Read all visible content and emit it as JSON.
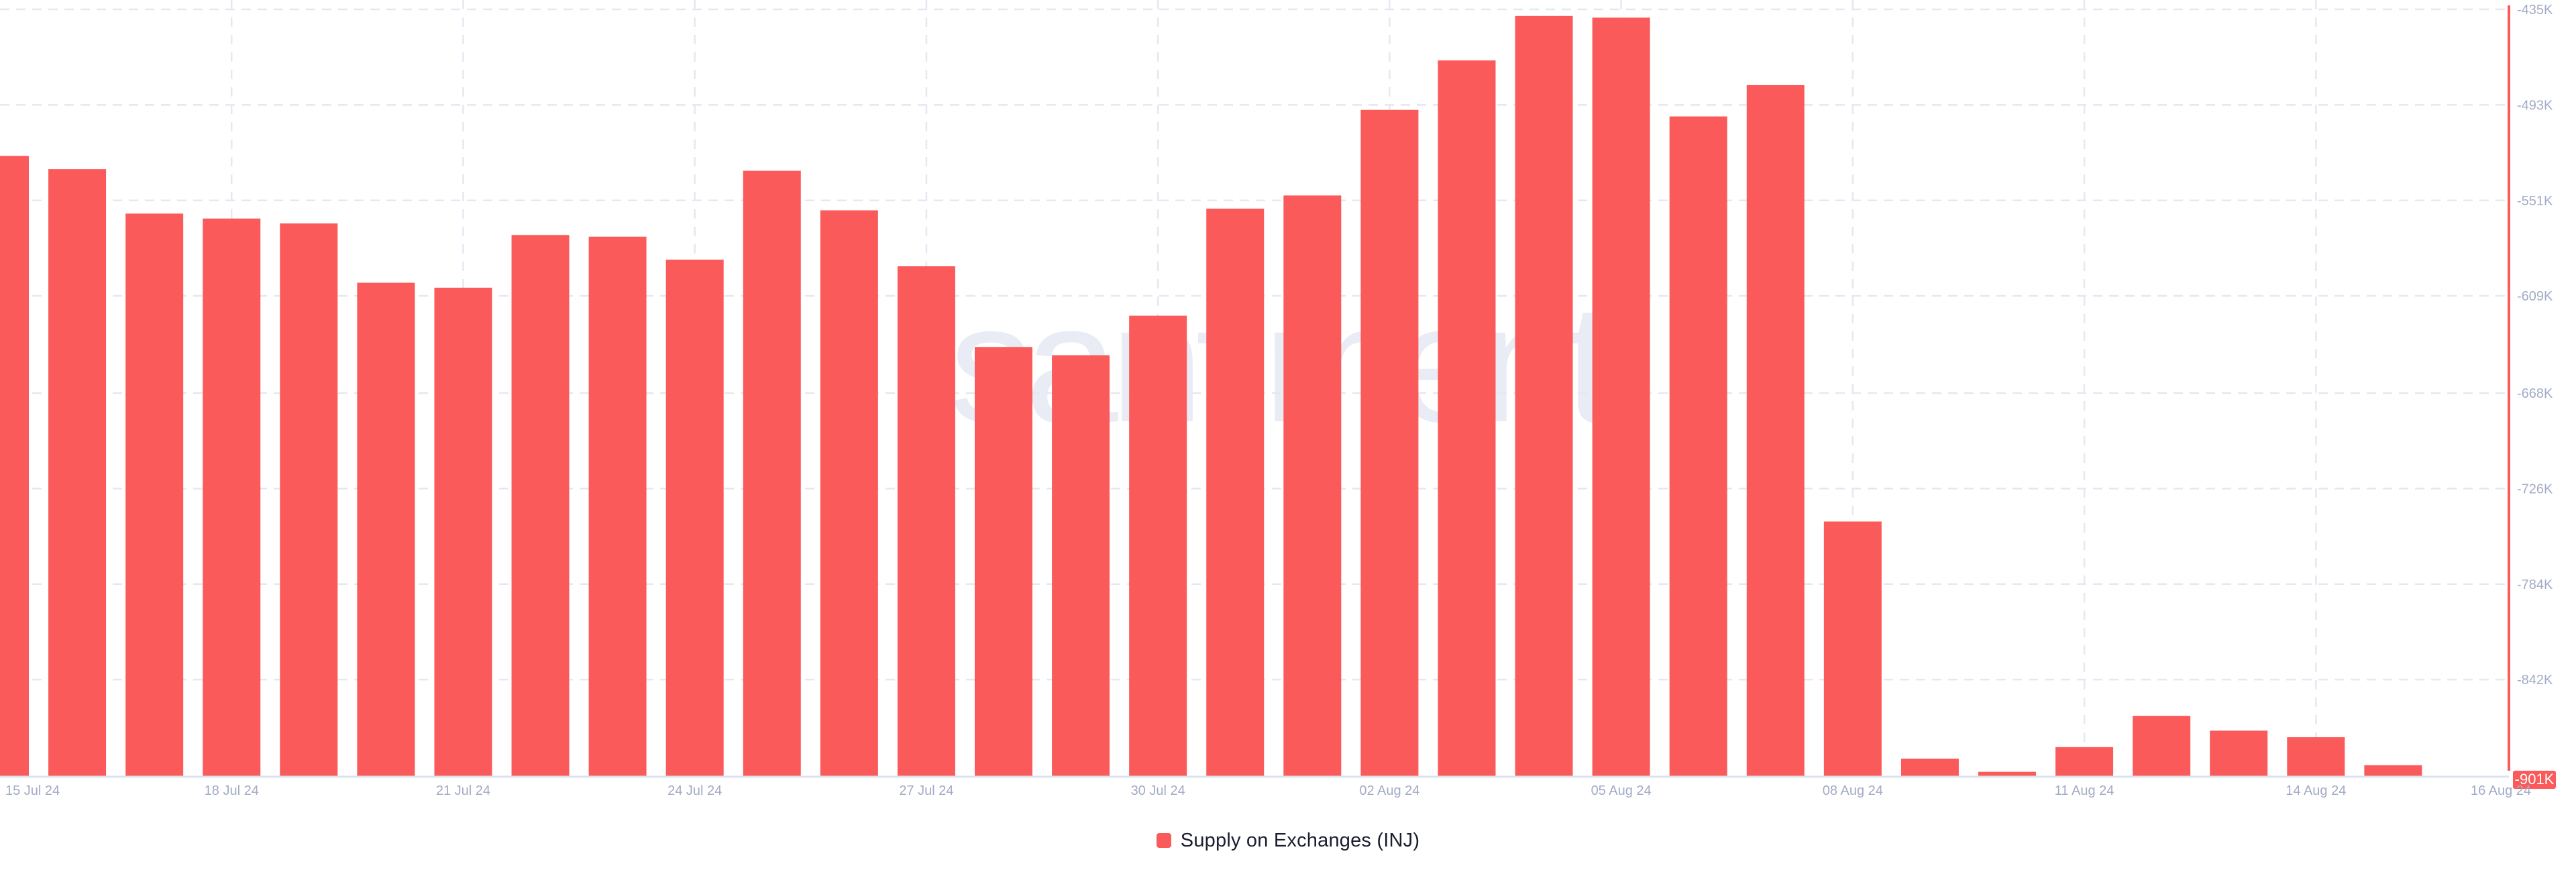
{
  "watermark": "santiment",
  "legend": {
    "label": "Supply on Exchanges (INJ)"
  },
  "colors": {
    "bar": "#FB5A5A",
    "y_axis_line": "#FB5A5A",
    "badge_bg": "#FB5A5A",
    "badge_text": "#FFFFFF",
    "grid": "#E4E8F2",
    "x_axis_line": "#DDE2EE",
    "tick_label": "#A2ABC5",
    "legend_text": "#1A1F30",
    "watermark": "#E9EBF5"
  },
  "chart_data": {
    "type": "bar",
    "title": "Supply on Exchanges (INJ)",
    "series_name": "Supply on Exchanges (INJ)",
    "unit": "K",
    "grid": true,
    "legend_position": "bottom",
    "categories": [
      "15 Jul 24",
      "16 Jul 24",
      "17 Jul 24",
      "18 Jul 24",
      "19 Jul 24",
      "20 Jul 24",
      "21 Jul 24",
      "22 Jul 24",
      "23 Jul 24",
      "24 Jul 24",
      "25 Jul 24",
      "26 Jul 24",
      "27 Jul 24",
      "28 Jul 24",
      "29 Jul 24",
      "30 Jul 24",
      "31 Jul 24",
      "01 Aug 24",
      "02 Aug 24",
      "03 Aug 24",
      "04 Aug 24",
      "05 Aug 24",
      "06 Aug 24",
      "07 Aug 24",
      "08 Aug 24",
      "09 Aug 24",
      "10 Aug 24",
      "11 Aug 24",
      "12 Aug 24",
      "13 Aug 24",
      "14 Aug 24",
      "15 Aug 24",
      "16 Aug 24"
    ],
    "values": [
      -524,
      -532,
      -559,
      -562,
      -565,
      -601,
      -604,
      -572,
      -573,
      -587,
      -533,
      -557,
      -591,
      -640,
      -645,
      -621,
      -556,
      -548,
      -496,
      -466,
      -439,
      -440,
      -500,
      -481,
      -746,
      -890,
      -898,
      -883,
      -864,
      -873,
      -877,
      -894,
      -901
    ],
    "ylim": [
      -901,
      -435
    ],
    "yticks": [
      {
        "value": -435,
        "label": "-435K"
      },
      {
        "value": -493,
        "label": "-493K"
      },
      {
        "value": -551,
        "label": "-551K"
      },
      {
        "value": -609,
        "label": "-609K"
      },
      {
        "value": -668,
        "label": "-668K"
      },
      {
        "value": -726,
        "label": "-726K"
      },
      {
        "value": -784,
        "label": "-784K"
      },
      {
        "value": -842,
        "label": "-842K"
      }
    ],
    "last_value_label": "-901K",
    "xticks": [
      {
        "index": 0,
        "label": "15 Jul 24"
      },
      {
        "index": 3,
        "label": "18 Jul 24"
      },
      {
        "index": 6,
        "label": "21 Jul 24"
      },
      {
        "index": 9,
        "label": "24 Jul 24"
      },
      {
        "index": 12,
        "label": "27 Jul 24"
      },
      {
        "index": 15,
        "label": "30 Jul 24"
      },
      {
        "index": 18,
        "label": "02 Aug 24"
      },
      {
        "index": 21,
        "label": "05 Aug 24"
      },
      {
        "index": 24,
        "label": "08 Aug 24"
      },
      {
        "index": 27,
        "label": "11 Aug 24"
      },
      {
        "index": 30,
        "label": "14 Aug 24"
      },
      {
        "index": 32,
        "label": "16 Aug 24"
      }
    ]
  }
}
